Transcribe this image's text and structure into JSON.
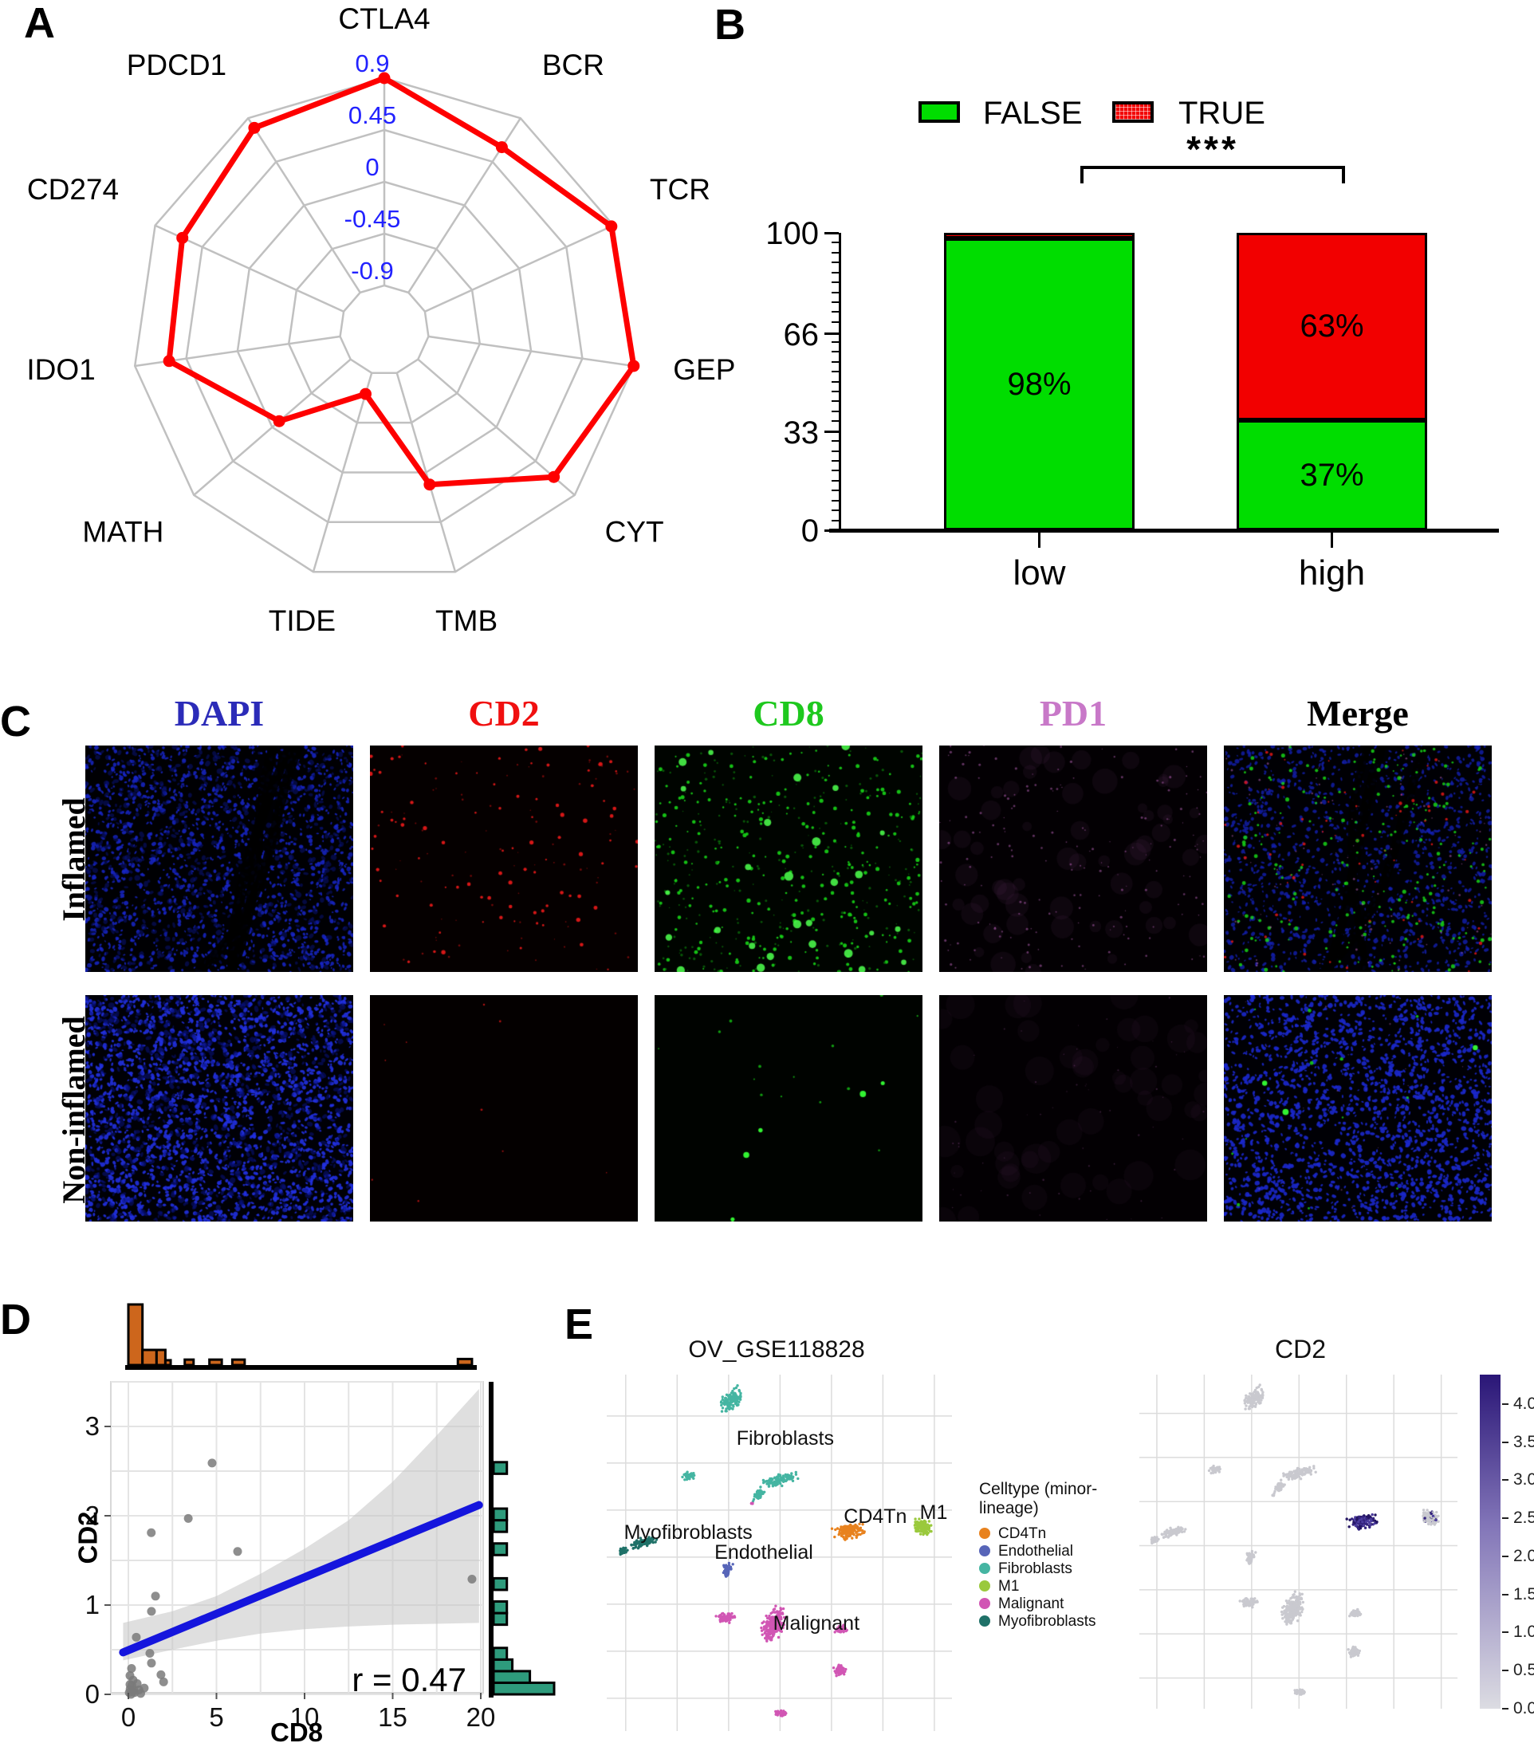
{
  "panels": {
    "a": "A",
    "b": "B",
    "c": "C",
    "d": "D",
    "e": "E"
  },
  "chart_data": [
    {
      "id": "radar",
      "type": "line",
      "subtype": "radar",
      "categories": [
        "CTLA4",
        "BCR",
        "TCR",
        "GEP",
        "CYT",
        "TMB",
        "TIDE",
        "MATH",
        "IDO1",
        "CD274",
        "PDCD1"
      ],
      "values": [
        0.9,
        0.6,
        0.88,
        0.9,
        0.66,
        0.11,
        -0.71,
        -0.08,
        0.6,
        0.64,
        0.8
      ],
      "ring_values": [
        0.9,
        0.45,
        0,
        -0.45,
        -0.9
      ],
      "ring_labels": [
        "0.9",
        "0.45",
        "0",
        "-0.45",
        "-0.9"
      ],
      "ylim": [
        -0.9,
        0.9
      ],
      "grid": true,
      "grid_color": "#c0c0c0",
      "line_color": "#fe0000",
      "tick_label_color": "#2222ff",
      "label_color": "#000000"
    },
    {
      "id": "stacked-bar",
      "type": "bar",
      "stacked": true,
      "categories": [
        "low",
        "high"
      ],
      "series": [
        {
          "name": "FALSE",
          "color": "#00dd00",
          "values": [
            98,
            37
          ]
        },
        {
          "name": "TRUE",
          "color": "#f20000",
          "values": [
            2,
            63
          ]
        }
      ],
      "segment_labels": [
        [
          "98%",
          ""
        ],
        [
          "37%",
          "63%"
        ]
      ],
      "yticks": [
        "0",
        "33",
        "66",
        "100"
      ],
      "ylim": [
        0,
        100
      ],
      "significance": "***",
      "legend_position": "top"
    },
    {
      "id": "cd8-cd2-scatter",
      "type": "scatter",
      "xlabel": "CD8",
      "ylabel": "CD2",
      "annotation": "r = 0.47",
      "xticks": [
        "0",
        "5",
        "10",
        "15",
        "20"
      ],
      "yticks": [
        "0",
        "1",
        "2",
        "3"
      ],
      "xlim": [
        -1,
        20.2
      ],
      "ylim": [
        0,
        3.5
      ],
      "grid": true,
      "point_color": "#7a7a7a",
      "line_color": "#1515dd",
      "band_color": "#c4c4c4",
      "points": [
        [
          0.05,
          0.02
        ],
        [
          0.09,
          0.11
        ],
        [
          0.09,
          0.21
        ],
        [
          0.1,
          0.06
        ],
        [
          0.15,
          0.0
        ],
        [
          0.18,
          0.29
        ],
        [
          0.2,
          0.1
        ],
        [
          0.25,
          0.03
        ],
        [
          0.27,
          0.16
        ],
        [
          0.3,
          0.05
        ],
        [
          0.35,
          0.02
        ],
        [
          0.45,
          0.64
        ],
        [
          0.5,
          0.12
        ],
        [
          0.6,
          0.05
        ],
        [
          0.7,
          0.01
        ],
        [
          0.9,
          0.07
        ],
        [
          1.22,
          0.46
        ],
        [
          1.31,
          0.35
        ],
        [
          1.31,
          0.93
        ],
        [
          1.3,
          1.81
        ],
        [
          1.54,
          1.1
        ],
        [
          1.85,
          0.22
        ],
        [
          2.0,
          0.14
        ],
        [
          3.4,
          1.97
        ],
        [
          4.75,
          2.59
        ],
        [
          6.2,
          1.6
        ],
        [
          19.5,
          1.29
        ]
      ],
      "line": {
        "x1": -0.3,
        "y1": 0.47,
        "x2": 19.9,
        "y2": 2.12
      },
      "band": [
        [
          -0.3,
          0.38,
          0.8
        ],
        [
          2.5,
          0.5,
          0.93
        ],
        [
          5,
          0.6,
          1.1
        ],
        [
          7.5,
          0.68,
          1.35
        ],
        [
          10,
          0.73,
          1.63
        ],
        [
          12.5,
          0.76,
          1.95
        ],
        [
          15,
          0.78,
          2.38
        ],
        [
          17.5,
          0.79,
          2.9
        ],
        [
          19.9,
          0.8,
          3.42
        ]
      ],
      "top_hist": {
        "color": "#cd661c",
        "bins": [
          [
            0,
            0.8,
            1.0
          ],
          [
            0.8,
            1.6,
            0.25
          ],
          [
            1.6,
            2.1,
            0.25
          ],
          [
            2.1,
            2.4,
            0.08
          ],
          [
            3.2,
            3.7,
            0.09
          ],
          [
            4.6,
            5.3,
            0.09
          ],
          [
            5.9,
            6.6,
            0.09
          ],
          [
            18.7,
            19.5,
            0.1
          ]
        ]
      },
      "right_hist": {
        "color": "#2e9b7c",
        "bins": [
          [
            0,
            0.13,
            1.0
          ],
          [
            0.13,
            0.26,
            0.6
          ],
          [
            0.26,
            0.39,
            0.31
          ],
          [
            0.39,
            0.52,
            0.22
          ],
          [
            0.78,
            0.91,
            0.22
          ],
          [
            0.91,
            1.04,
            0.22
          ],
          [
            1.17,
            1.3,
            0.22
          ],
          [
            1.56,
            1.69,
            0.22
          ],
          [
            1.82,
            1.95,
            0.22
          ],
          [
            1.95,
            2.08,
            0.22
          ],
          [
            2.47,
            2.6,
            0.22
          ]
        ]
      }
    },
    {
      "id": "umap-celltype",
      "type": "scatter",
      "subtype": "umap",
      "title": "OV_GSE118828",
      "legend_title": "Celltype (minor-lineage)",
      "grid": true,
      "celltypes": [
        {
          "name": "CD4Tn",
          "color": "#e8821e"
        },
        {
          "name": "Endothelial",
          "color": "#5765b8"
        },
        {
          "name": "Fibroblasts",
          "color": "#45b5a2"
        },
        {
          "name": "M1",
          "color": "#9ac93d"
        },
        {
          "name": "Malignant",
          "color": "#d156b4"
        },
        {
          "name": "Myofibroblasts",
          "color": "#1f7168"
        }
      ],
      "clusters": [
        {
          "celltype": "Fibroblasts",
          "x": 0.36,
          "y": 0.072,
          "rx": 24,
          "ry": 16,
          "rot": -35,
          "n": 130,
          "cd2": "low"
        },
        {
          "celltype": "Fibroblasts",
          "x": 0.238,
          "y": 0.284,
          "rx": 11,
          "ry": 8,
          "rot": 0,
          "n": 45,
          "cd2": "low"
        },
        {
          "celltype": "Fibroblasts",
          "x": 0.5,
          "y": 0.295,
          "rx": 34,
          "ry": 10,
          "rot": -20,
          "n": 120,
          "cd2": "low"
        },
        {
          "celltype": "Fibroblasts",
          "x": 0.438,
          "y": 0.34,
          "rx": 14,
          "ry": 7,
          "rot": -45,
          "n": 45,
          "cd2": "low"
        },
        {
          "celltype": "Malignant",
          "x": 0.42,
          "y": 0.362,
          "rx": 2.5,
          "ry": 2.5,
          "rot": 0,
          "n": 4,
          "cd2": "low"
        },
        {
          "celltype": "Myofibroblasts",
          "x": 0.105,
          "y": 0.472,
          "rx": 26,
          "ry": 8,
          "rot": -14,
          "n": 100,
          "cd2": "low"
        },
        {
          "celltype": "Myofibroblasts",
          "x": 0.046,
          "y": 0.496,
          "rx": 9,
          "ry": 6,
          "rot": 0,
          "n": 35,
          "cd2": "low"
        },
        {
          "celltype": "Endothelial",
          "x": 0.349,
          "y": 0.548,
          "rx": 8,
          "ry": 13,
          "rot": 10,
          "n": 55,
          "cd2": "low"
        },
        {
          "celltype": "CD4Tn",
          "x": 0.7,
          "y": 0.44,
          "rx": 26,
          "ry": 13,
          "rot": -8,
          "n": 150,
          "cd2": "high"
        },
        {
          "celltype": "M1",
          "x": 0.915,
          "y": 0.428,
          "rx": 19,
          "ry": 14,
          "rot": 20,
          "n": 110,
          "cd2": "sparse"
        },
        {
          "celltype": "Malignant",
          "x": 0.482,
          "y": 0.7,
          "rx": 17,
          "ry": 30,
          "rot": 20,
          "n": 260,
          "cd2": "low"
        },
        {
          "celltype": "Malignant",
          "x": 0.345,
          "y": 0.683,
          "rx": 15,
          "ry": 9,
          "rot": -10,
          "n": 70,
          "cd2": "low"
        },
        {
          "celltype": "Malignant",
          "x": 0.678,
          "y": 0.714,
          "rx": 13,
          "ry": 9,
          "rot": 0,
          "n": 60,
          "cd2": "low"
        },
        {
          "celltype": "Malignant",
          "x": 0.676,
          "y": 0.83,
          "rx": 11,
          "ry": 10,
          "rot": 0,
          "n": 55,
          "cd2": "low"
        },
        {
          "celltype": "Malignant",
          "x": 0.506,
          "y": 0.95,
          "rx": 11,
          "ry": 6,
          "rot": 0,
          "n": 45,
          "cd2": "low"
        }
      ],
      "cluster_labels": [
        {
          "text": "Fibroblasts",
          "x": 0.517,
          "y": 0.197
        },
        {
          "text": "Myofibroblasts",
          "x": 0.236,
          "y": 0.461
        },
        {
          "text": "Endothelial",
          "x": 0.455,
          "y": 0.517
        },
        {
          "text": "CD4Tn",
          "x": 0.778,
          "y": 0.416
        },
        {
          "text": "M1",
          "x": 0.947,
          "y": 0.405
        },
        {
          "text": "Malignant",
          "x": 0.607,
          "y": 0.716
        }
      ]
    },
    {
      "id": "umap-cd2",
      "type": "scatter",
      "subtype": "umap-feature",
      "title": "CD2",
      "grid": true,
      "base_color": "#c9c9cf",
      "high_colors": [
        "#34247e",
        "#241563",
        "#4c3d9e"
      ],
      "colorbar": {
        "low_color": "#dcdce2",
        "mid_color": "#8275b8",
        "high_color": "#2a1677",
        "ticks": [
          "4.0",
          "3.5",
          "3.0",
          "2.5",
          "2.0",
          "1.5",
          "1.0",
          "0.5",
          "0.0"
        ],
        "vmin": 0.0,
        "vmax": 4.0
      }
    }
  ],
  "panel_c": {
    "col_headers": [
      {
        "label": "DAPI",
        "color": "#2b2bb8"
      },
      {
        "label": "CD2",
        "color": "#f01010"
      },
      {
        "label": "CD8",
        "color": "#1ec81e"
      },
      {
        "label": "PD1",
        "color": "#c878c8"
      },
      {
        "label": "Merge",
        "color": "#000000"
      }
    ],
    "row_labels": [
      "Inflamed",
      "Non-inflamed"
    ],
    "images": [
      {
        "row": "Inflamed",
        "col": "DAPI",
        "seed": 11,
        "bg": "#000003",
        "layers": [
          {
            "kind": "nuclei",
            "color": "#1726c8",
            "n": 1500,
            "rmin": 1.2,
            "rmax": 3.2,
            "alpha": 0.85
          },
          {
            "kind": "nuclei",
            "color": "#0a137f",
            "n": 700,
            "rmin": 2,
            "rmax": 4,
            "alpha": 0.5
          },
          {
            "kind": "crack",
            "color": "#000000",
            "n": 3,
            "w": 14
          }
        ]
      },
      {
        "row": "Inflamed",
        "col": "CD2",
        "seed": 22,
        "bg": "#050000",
        "layers": [
          {
            "kind": "dots",
            "color": "#e01818",
            "n": 90,
            "rmin": 1,
            "rmax": 2.8,
            "alpha": 0.95
          },
          {
            "kind": "dots",
            "color": "#8f0d0d",
            "n": 70,
            "rmin": 0.6,
            "rmax": 1.4,
            "alpha": 0.8
          }
        ]
      },
      {
        "row": "Inflamed",
        "col": "CD8",
        "seed": 33,
        "bg": "#000400",
        "layers": [
          {
            "kind": "dots",
            "color": "#17d417",
            "n": 260,
            "rmin": 1,
            "rmax": 2.6,
            "alpha": 0.9
          },
          {
            "kind": "dots",
            "color": "#0c7a0c",
            "n": 220,
            "rmin": 0.7,
            "rmax": 1.8,
            "alpha": 0.7
          },
          {
            "kind": "dots",
            "color": "#49f549",
            "n": 28,
            "rmin": 3,
            "rmax": 6,
            "alpha": 0.9
          }
        ]
      },
      {
        "row": "Inflamed",
        "col": "PD1",
        "seed": 44,
        "bg": "#030003",
        "layers": [
          {
            "kind": "haze",
            "color": "#7a3d7a",
            "n": 60,
            "rmin": 6,
            "rmax": 16,
            "alpha": 0.1
          },
          {
            "kind": "dots",
            "color": "#c468c4",
            "n": 180,
            "rmin": 0.6,
            "rmax": 1.6,
            "alpha": 0.5
          }
        ]
      },
      {
        "row": "Inflamed",
        "col": "Merge",
        "seed": 55,
        "bg": "#000004",
        "layers": [
          {
            "kind": "nuclei",
            "color": "#131fb0",
            "n": 1200,
            "rmin": 1.2,
            "rmax": 3.2,
            "alpha": 0.8
          },
          {
            "kind": "crack",
            "color": "#000000",
            "n": 3,
            "w": 14
          },
          {
            "kind": "dots",
            "color": "#17d417",
            "n": 200,
            "rmin": 1,
            "rmax": 2.6,
            "alpha": 0.85
          },
          {
            "kind": "dots",
            "color": "#e01818",
            "n": 70,
            "rmin": 0.8,
            "rmax": 2.2,
            "alpha": 0.85
          },
          {
            "kind": "dots",
            "color": "#c468c4",
            "n": 90,
            "rmin": 0.6,
            "rmax": 1.5,
            "alpha": 0.5
          }
        ]
      },
      {
        "row": "Non-inflamed",
        "col": "DAPI",
        "seed": 66,
        "bg": "#000006",
        "layers": [
          {
            "kind": "nuclei",
            "color": "#2130e0",
            "n": 2000,
            "rmin": 1.4,
            "rmax": 3.4,
            "alpha": 0.9
          },
          {
            "kind": "nuclei",
            "color": "#0a137f",
            "n": 900,
            "rmin": 2,
            "rmax": 4.2,
            "alpha": 0.55
          }
        ]
      },
      {
        "row": "Non-inflamed",
        "col": "CD2",
        "seed": 77,
        "bg": "#040000",
        "layers": [
          {
            "kind": "dots",
            "color": "#c01414",
            "n": 10,
            "rmin": 0.7,
            "rmax": 1.5,
            "alpha": 0.9
          }
        ]
      },
      {
        "row": "Non-inflamed",
        "col": "CD8",
        "seed": 88,
        "bg": "#000300",
        "layers": [
          {
            "kind": "dots",
            "color": "#14b814",
            "n": 14,
            "rmin": 0.8,
            "rmax": 2,
            "alpha": 0.85
          },
          {
            "kind": "dots",
            "color": "#35ff35",
            "n": 5,
            "rmin": 2.2,
            "rmax": 4,
            "alpha": 0.95
          }
        ]
      },
      {
        "row": "Non-inflamed",
        "col": "PD1",
        "seed": 99,
        "bg": "#030003",
        "layers": [
          {
            "kind": "haze",
            "color": "#6a336a",
            "n": 50,
            "rmin": 8,
            "rmax": 20,
            "alpha": 0.08
          },
          {
            "kind": "dots",
            "color": "#a052a0",
            "n": 60,
            "rmin": 0.5,
            "rmax": 1.2,
            "alpha": 0.35
          }
        ]
      },
      {
        "row": "Non-inflamed",
        "col": "Merge",
        "seed": 110,
        "bg": "#000005",
        "layers": [
          {
            "kind": "nuclei",
            "color": "#1b28cc",
            "n": 1900,
            "rmin": 1.4,
            "rmax": 3.4,
            "alpha": 0.9
          },
          {
            "kind": "dots",
            "color": "#17d417",
            "n": 12,
            "rmin": 1,
            "rmax": 2.4,
            "alpha": 0.85
          },
          {
            "kind": "dots",
            "color": "#35ff35",
            "n": 3,
            "rmin": 2.5,
            "rmax": 4,
            "alpha": 0.95
          },
          {
            "kind": "dots",
            "color": "#c468c4",
            "n": 20,
            "rmin": 0.5,
            "rmax": 1.2,
            "alpha": 0.4
          }
        ]
      }
    ]
  }
}
